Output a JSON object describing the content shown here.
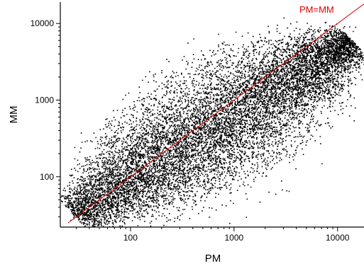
{
  "chart_data": {
    "type": "scatter",
    "title": "",
    "xlabel": "PM",
    "ylabel": "MM",
    "x_scale": "log",
    "y_scale": "log",
    "xlim": [
      21,
      18000
    ],
    "ylim": [
      22,
      19000
    ],
    "x_ticks": [
      100,
      1000,
      10000
    ],
    "x_tick_labels": [
      "100",
      "1000",
      "10000"
    ],
    "y_ticks": [
      100,
      1000,
      10000
    ],
    "y_tick_labels": [
      "100",
      "1000",
      "10000"
    ],
    "grid": false,
    "point_color": "#000000",
    "reference_line": {
      "label": "PM=MM",
      "color": "#e00000",
      "from": [
        25,
        25
      ],
      "to": [
        18000,
        18000
      ]
    },
    "series": [
      {
        "description": "dense cloud of probe intensities, spanning roughly PM 25–15000, MM 25–9000, concentrated along and below the identity line",
        "points": [
          [
            28,
            30
          ],
          [
            35,
            40
          ],
          [
            45,
            55
          ],
          [
            60,
            70
          ],
          [
            80,
            110
          ],
          [
            100,
            150
          ],
          [
            130,
            200
          ],
          [
            160,
            260
          ],
          [
            200,
            320
          ],
          [
            250,
            400
          ],
          [
            320,
            500
          ],
          [
            400,
            620
          ],
          [
            500,
            700
          ],
          [
            650,
            850
          ],
          [
            800,
            1000
          ],
          [
            1000,
            1200
          ],
          [
            1300,
            1500
          ],
          [
            1600,
            1800
          ],
          [
            2000,
            2100
          ],
          [
            2600,
            2500
          ],
          [
            3200,
            2800
          ],
          [
            4000,
            3300
          ],
          [
            5000,
            3800
          ],
          [
            6500,
            4300
          ],
          [
            8000,
            5000
          ],
          [
            10000,
            6000
          ],
          [
            12000,
            7000
          ],
          [
            14000,
            8000
          ],
          [
            40,
            30
          ],
          [
            60,
            35
          ],
          [
            90,
            45
          ],
          [
            130,
            55
          ],
          [
            200,
            70
          ],
          [
            300,
            90
          ],
          [
            450,
            110
          ],
          [
            700,
            140
          ],
          [
            1000,
            180
          ],
          [
            1500,
            250
          ],
          [
            2200,
            350
          ],
          [
            3200,
            500
          ],
          [
            4500,
            800
          ],
          [
            6000,
            1300
          ],
          [
            8000,
            2000
          ],
          [
            10000,
            3000
          ],
          [
            12000,
            4500
          ],
          [
            30,
            60
          ],
          [
            40,
            90
          ],
          [
            55,
            150
          ],
          [
            70,
            220
          ],
          [
            90,
            330
          ],
          [
            120,
            480
          ],
          [
            150,
            700
          ],
          [
            200,
            950
          ],
          [
            260,
            1300
          ],
          [
            330,
            1700
          ],
          [
            420,
            2200
          ],
          [
            550,
            2800
          ],
          [
            700,
            3300
          ],
          [
            900,
            3800
          ],
          [
            50,
            200
          ],
          [
            80,
            600
          ],
          [
            120,
            1500
          ],
          [
            250,
            2000
          ],
          [
            400,
            4000
          ],
          [
            1200,
            5000
          ],
          [
            3000,
            12000
          ],
          [
            900,
            25
          ],
          [
            1300,
            30
          ],
          [
            2500,
            60
          ],
          [
            6000,
            300
          ],
          [
            7000,
            150
          ],
          [
            15000,
            2500
          ],
          [
            35,
            25
          ],
          [
            50,
            26
          ],
          [
            70,
            28
          ],
          [
            90,
            30
          ],
          [
            120,
            33
          ],
          [
            160,
            38
          ]
        ]
      }
    ]
  }
}
